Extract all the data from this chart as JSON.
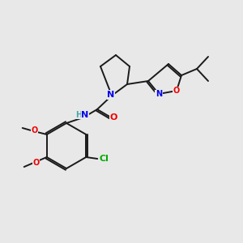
{
  "background_color": "#e8e8e8",
  "bond_color": "#1a1a1a",
  "atom_colors": {
    "N": "#0000ee",
    "O": "#ee0000",
    "Cl": "#00aa00",
    "H": "#44aaaa",
    "C": "#1a1a1a"
  },
  "lw": 1.4
}
